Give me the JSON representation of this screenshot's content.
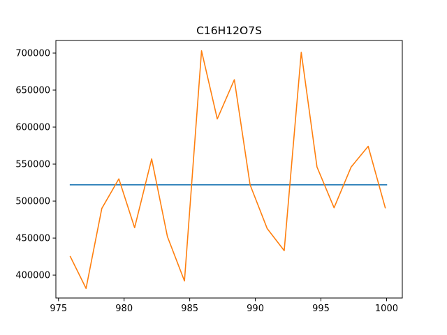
{
  "chart_data": {
    "type": "line",
    "title": "C16H12O7S",
    "xlabel": "",
    "ylabel": "",
    "xlim": [
      974.8,
      1001.2
    ],
    "ylim": [
      369000,
      717000
    ],
    "x_ticks": [
      975,
      980,
      985,
      990,
      995,
      1000
    ],
    "x_tick_labels": [
      "975",
      "980",
      "985",
      "990",
      "995",
      "1000"
    ],
    "y_ticks": [
      400000,
      450000,
      500000,
      550000,
      600000,
      650000,
      700000
    ],
    "y_tick_labels": [
      "400000",
      "450000",
      "500000",
      "550000",
      "600000",
      "650000",
      "700000"
    ],
    "grid": false,
    "series": [
      {
        "color": "#1f77b4",
        "x": [
          975.9,
          1000.0
        ],
        "y": [
          522000,
          522000
        ]
      },
      {
        "color": "#ff7f0e",
        "x": [
          975.9,
          977.1,
          978.3,
          979.6,
          980.8,
          982.1,
          983.3,
          984.6,
          985.9,
          987.1,
          988.4,
          989.6,
          990.9,
          992.2,
          993.5,
          994.7,
          996.0,
          997.3,
          998.6,
          999.9
        ],
        "y": [
          425000,
          382000,
          490000,
          530000,
          464000,
          557000,
          452000,
          392000,
          703000,
          611000,
          664000,
          522000,
          463000,
          433000,
          701000,
          546000,
          491000,
          546000,
          574000,
          491000
        ]
      }
    ]
  }
}
